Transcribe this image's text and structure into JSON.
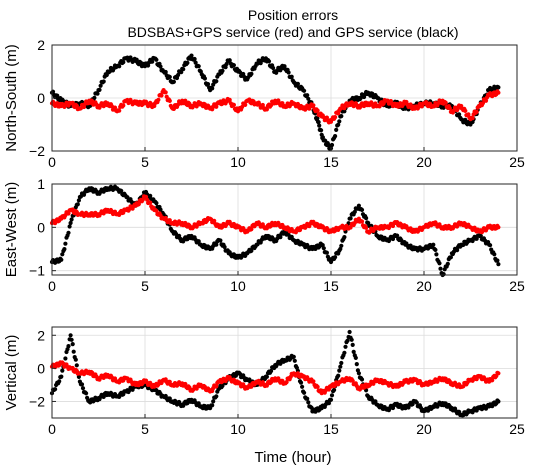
{
  "figure": {
    "title_line1": "Position errors",
    "title_line2": "BDSBAS+GPS service (red)  and  GPS service (black)",
    "xlabel": "Time (hour)"
  },
  "colors": {
    "red": "#ff0000",
    "black": "#000000"
  },
  "chart_data": [
    {
      "type": "scatter",
      "ylabel": "North-South (m)",
      "xlim": [
        0,
        25
      ],
      "ylim": [
        -2,
        2
      ],
      "xticks": [
        0,
        5,
        10,
        15,
        20,
        25
      ],
      "yticks": [
        -2,
        0,
        2
      ],
      "grid": true,
      "series": [
        {
          "color": "black",
          "x": [
            0,
            0.5,
            1,
            1.5,
            2,
            2.5,
            3,
            3.5,
            4,
            4.5,
            5,
            5.5,
            6,
            6.5,
            7,
            7.5,
            8,
            8.5,
            9,
            9.5,
            10,
            10.5,
            11,
            11.5,
            12,
            12.5,
            13,
            13.5,
            14,
            14.3,
            14.6,
            15,
            15.5,
            16,
            16.5,
            17,
            17.5,
            18,
            18.5,
            19,
            19.5,
            20,
            20.5,
            21,
            21.5,
            22,
            22.5,
            23,
            23.5,
            24
          ],
          "y": [
            0.2,
            -0.1,
            -0.3,
            -0.2,
            -0.3,
            0.3,
            1.0,
            1.2,
            1.5,
            1.4,
            1.2,
            1.5,
            1.0,
            0.6,
            1.1,
            1.6,
            1.0,
            0.3,
            0.9,
            1.4,
            1.0,
            0.7,
            1.3,
            1.5,
            1.0,
            1.2,
            0.6,
            0.3,
            -0.3,
            -0.9,
            -1.6,
            -1.9,
            -0.7,
            -0.1,
            0.0,
            0.2,
            0.0,
            -0.3,
            -0.2,
            -0.4,
            -0.3,
            -0.2,
            -0.2,
            -0.3,
            -0.3,
            -0.8,
            -1.0,
            -0.3,
            0.3,
            0.4
          ]
        },
        {
          "color": "red",
          "x": [
            0,
            0.5,
            1,
            1.5,
            2,
            2.5,
            3,
            3.5,
            4,
            4.5,
            5,
            5.5,
            6,
            6.5,
            7,
            7.5,
            8,
            8.5,
            9,
            9.5,
            10,
            10.5,
            11,
            11.5,
            12,
            12.5,
            13,
            13.5,
            14,
            14.5,
            15,
            15.5,
            16,
            16.5,
            17,
            17.5,
            18,
            18.5,
            19,
            19.5,
            20,
            20.5,
            21,
            21.5,
            22,
            22.5,
            23,
            23.5,
            24
          ],
          "y": [
            -0.2,
            -0.3,
            -0.2,
            -0.4,
            -0.1,
            -0.3,
            -0.2,
            -0.5,
            -0.1,
            -0.2,
            -0.2,
            -0.3,
            0.3,
            -0.4,
            -0.1,
            -0.3,
            -0.2,
            -0.4,
            -0.2,
            -0.1,
            -0.5,
            -0.1,
            -0.2,
            -0.4,
            -0.1,
            -0.3,
            -0.2,
            -0.4,
            -0.3,
            -0.7,
            -0.9,
            -0.4,
            -0.2,
            -0.3,
            -0.2,
            -0.3,
            -0.1,
            -0.3,
            -0.2,
            -0.4,
            -0.2,
            -0.3,
            -0.1,
            -0.5,
            -0.3,
            -0.8,
            -0.3,
            0.1,
            0.2
          ]
        }
      ]
    },
    {
      "type": "scatter",
      "ylabel": "East-West (m)",
      "xlim": [
        0,
        25
      ],
      "ylim": [
        -1.1,
        1
      ],
      "xticks": [
        0,
        5,
        10,
        15,
        20,
        25
      ],
      "yticks": [
        -1,
        0,
        1
      ],
      "grid": true,
      "series": [
        {
          "color": "black",
          "x": [
            0,
            0.5,
            1,
            1.5,
            2,
            2.5,
            3,
            3.5,
            4,
            4.5,
            5,
            5.5,
            6,
            6.5,
            7,
            7.5,
            8,
            8.5,
            9,
            9.5,
            10,
            10.5,
            11,
            11.5,
            12,
            12.5,
            13,
            13.5,
            14,
            14.5,
            15,
            15.5,
            16,
            16.5,
            17,
            17.5,
            18,
            18.5,
            19,
            19.5,
            20,
            20.5,
            21,
            21.5,
            22,
            22.5,
            23,
            23.5,
            24
          ],
          "y": [
            -0.8,
            -0.75,
            0.1,
            0.7,
            0.9,
            0.8,
            0.9,
            0.9,
            0.7,
            0.5,
            0.8,
            0.6,
            0.3,
            -0.1,
            -0.3,
            -0.2,
            -0.4,
            -0.5,
            -0.3,
            -0.6,
            -0.7,
            -0.6,
            -0.4,
            -0.2,
            -0.3,
            -0.1,
            -0.3,
            -0.4,
            -0.5,
            -0.4,
            -0.8,
            -0.5,
            0.2,
            0.5,
            0.1,
            -0.2,
            -0.3,
            -0.2,
            -0.4,
            -0.5,
            -0.5,
            -0.4,
            -1.1,
            -0.6,
            -0.4,
            -0.3,
            -0.2,
            -0.4,
            -0.85
          ]
        },
        {
          "color": "red",
          "x": [
            0,
            0.5,
            1,
            1.5,
            2,
            2.5,
            3,
            3.5,
            4,
            4.5,
            5,
            5.5,
            6,
            6.5,
            7,
            7.5,
            8,
            8.5,
            9,
            9.5,
            10,
            10.5,
            11,
            11.5,
            12,
            12.5,
            13,
            13.5,
            14,
            14.5,
            15,
            15.5,
            16,
            16.5,
            17,
            17.5,
            18,
            18.5,
            19,
            19.5,
            20,
            20.5,
            21,
            21.5,
            22,
            22.5,
            23,
            23.5,
            24
          ],
          "y": [
            0.1,
            0.2,
            0.4,
            0.3,
            0.3,
            0.3,
            0.4,
            0.3,
            0.4,
            0.5,
            0.7,
            0.4,
            0.2,
            0.1,
            0.1,
            0.0,
            0.1,
            0.2,
            0.0,
            0.1,
            0.0,
            -0.1,
            0.1,
            0.0,
            0.1,
            0.0,
            -0.1,
            0.0,
            0.1,
            0.0,
            -0.1,
            0.0,
            0.0,
            0.2,
            -0.1,
            0.0,
            0.0,
            0.1,
            0.0,
            -0.1,
            0.0,
            0.1,
            0.0,
            0.0,
            0.1,
            0.0,
            -0.1,
            0.0,
            0.0
          ]
        }
      ]
    },
    {
      "type": "scatter",
      "ylabel": "Vertical (m)",
      "xlim": [
        0,
        25
      ],
      "ylim": [
        -3,
        2.5
      ],
      "xticks": [
        0,
        5,
        10,
        15,
        20,
        25
      ],
      "yticks": [
        -2,
        0,
        2
      ],
      "grid": true,
      "series": [
        {
          "color": "black",
          "x": [
            0,
            0.5,
            1,
            1.5,
            2,
            2.5,
            3,
            3.5,
            4,
            4.5,
            5,
            5.5,
            6,
            6.5,
            7,
            7.5,
            8,
            8.5,
            9,
            9.5,
            10,
            10.5,
            11,
            11.5,
            12,
            12.5,
            13,
            13.5,
            14,
            14.5,
            15,
            15.5,
            16,
            16.5,
            17,
            17.5,
            18,
            18.5,
            19,
            19.5,
            20,
            20.5,
            21,
            21.5,
            22,
            22.5,
            23,
            23.5,
            24
          ],
          "y": [
            -1.5,
            -0.5,
            2.0,
            -0.8,
            -2.0,
            -1.8,
            -1.5,
            -1.7,
            -1.4,
            -1.1,
            -1.0,
            -1.3,
            -1.7,
            -2.0,
            -2.2,
            -1.9,
            -2.3,
            -2.4,
            -1.2,
            -0.6,
            -0.3,
            -0.7,
            -1.0,
            -0.5,
            0.2,
            0.5,
            0.7,
            -1.4,
            -2.6,
            -2.4,
            -1.9,
            0.1,
            2.2,
            -0.3,
            -1.7,
            -2.2,
            -2.5,
            -2.2,
            -2.4,
            -2.0,
            -2.6,
            -2.3,
            -2.1,
            -2.4,
            -2.8,
            -2.6,
            -2.4,
            -2.3,
            -2.0
          ]
        },
        {
          "color": "red",
          "x": [
            0,
            0.5,
            1,
            1.5,
            2,
            2.5,
            3,
            3.5,
            4,
            4.5,
            5,
            5.5,
            6,
            6.5,
            7,
            7.5,
            8,
            8.5,
            9,
            9.5,
            10,
            10.5,
            11,
            11.5,
            12,
            12.5,
            13,
            13.5,
            14,
            14.5,
            15,
            15.5,
            16,
            16.5,
            17,
            17.5,
            18,
            18.5,
            19,
            19.5,
            20,
            20.5,
            21,
            21.5,
            22,
            22.5,
            23,
            23.5,
            24
          ],
          "y": [
            0.1,
            0.3,
            0.0,
            -0.3,
            -0.2,
            -0.6,
            -0.4,
            -0.8,
            -0.6,
            -1.0,
            -0.8,
            -1.1,
            -0.7,
            -1.0,
            -0.9,
            -1.3,
            -1.0,
            -1.4,
            -0.8,
            -0.6,
            -0.9,
            -1.2,
            -0.8,
            -1.0,
            -0.6,
            -0.9,
            -0.3,
            -0.5,
            -0.8,
            -1.5,
            -1.1,
            -0.8,
            -0.6,
            -1.2,
            -1.0,
            -0.7,
            -0.9,
            -1.1,
            -0.8,
            -0.7,
            -1.0,
            -0.8,
            -0.6,
            -0.9,
            -1.1,
            -0.7,
            -0.5,
            -0.8,
            -0.3
          ]
        }
      ]
    }
  ]
}
